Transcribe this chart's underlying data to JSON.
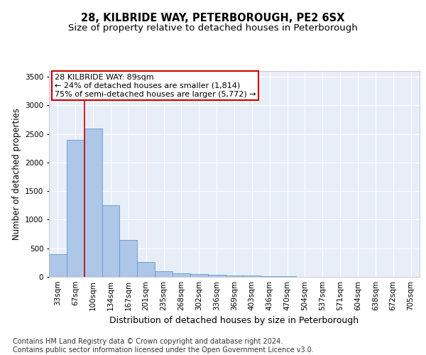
{
  "title": "28, KILBRIDE WAY, PETERBOROUGH, PE2 6SX",
  "subtitle": "Size of property relative to detached houses in Peterborough",
  "xlabel": "Distribution of detached houses by size in Peterborough",
  "ylabel": "Number of detached properties",
  "footer_line1": "Contains HM Land Registry data © Crown copyright and database right 2024.",
  "footer_line2": "Contains public sector information licensed under the Open Government Licence v3.0.",
  "categories": [
    "33sqm",
    "67sqm",
    "100sqm",
    "134sqm",
    "167sqm",
    "201sqm",
    "235sqm",
    "268sqm",
    "302sqm",
    "336sqm",
    "369sqm",
    "403sqm",
    "436sqm",
    "470sqm",
    "504sqm",
    "537sqm",
    "571sqm",
    "604sqm",
    "638sqm",
    "672sqm",
    "705sqm"
  ],
  "values": [
    400,
    2400,
    2600,
    1250,
    640,
    260,
    100,
    60,
    55,
    40,
    25,
    20,
    15,
    10,
    5,
    3,
    2,
    2,
    1,
    1,
    1
  ],
  "bar_color": "#aec6e8",
  "bar_edge_color": "#5b9bd5",
  "background_color": "#e8eef8",
  "grid_color": "#ffffff",
  "fig_background": "#ffffff",
  "ylim": [
    0,
    3600
  ],
  "yticks": [
    0,
    500,
    1000,
    1500,
    2000,
    2500,
    3000,
    3500
  ],
  "annotation_text": "28 KILBRIDE WAY: 89sqm\n← 24% of detached houses are smaller (1,814)\n75% of semi-detached houses are larger (5,772) →",
  "annotation_box_color": "#ffffff",
  "annotation_box_edge": "#cc0000",
  "red_line_x": 1.5,
  "title_fontsize": 10.5,
  "subtitle_fontsize": 9.5,
  "xlabel_fontsize": 9,
  "ylabel_fontsize": 8.5,
  "tick_fontsize": 7.5,
  "annotation_fontsize": 8,
  "footer_fontsize": 7
}
